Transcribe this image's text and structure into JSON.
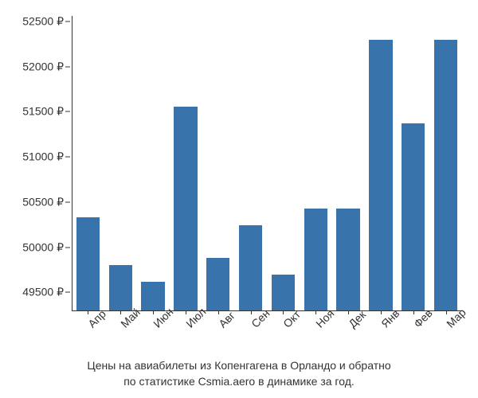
{
  "chart": {
    "type": "bar",
    "categories": [
      "Апр",
      "Май",
      "Июн",
      "Июл",
      "Авг",
      "Сен",
      "Окт",
      "Ноя",
      "Дек",
      "Янв",
      "Фев",
      "Мар"
    ],
    "values": [
      50330,
      49800,
      49620,
      51560,
      49880,
      50240,
      49700,
      50430,
      50430,
      52300,
      51370,
      52300
    ],
    "bar_color": "#3973ac",
    "background_color": "#ffffff",
    "ylim": [
      49300,
      52560
    ],
    "yticks": [
      49500,
      50000,
      50500,
      51000,
      51500,
      52000,
      52500
    ],
    "ytick_labels": [
      "49500 ₽",
      "50000 ₽",
      "50500 ₽",
      "51000 ₽",
      "51500 ₽",
      "52000 ₽",
      "52500 ₽"
    ],
    "tick_fontsize": 14,
    "caption_fontsize": 14,
    "caption": "Цены на авиабилеты из Копенгагена в Орландо и обратно\nпо статистике Csmia.aero в динамике за год."
  }
}
